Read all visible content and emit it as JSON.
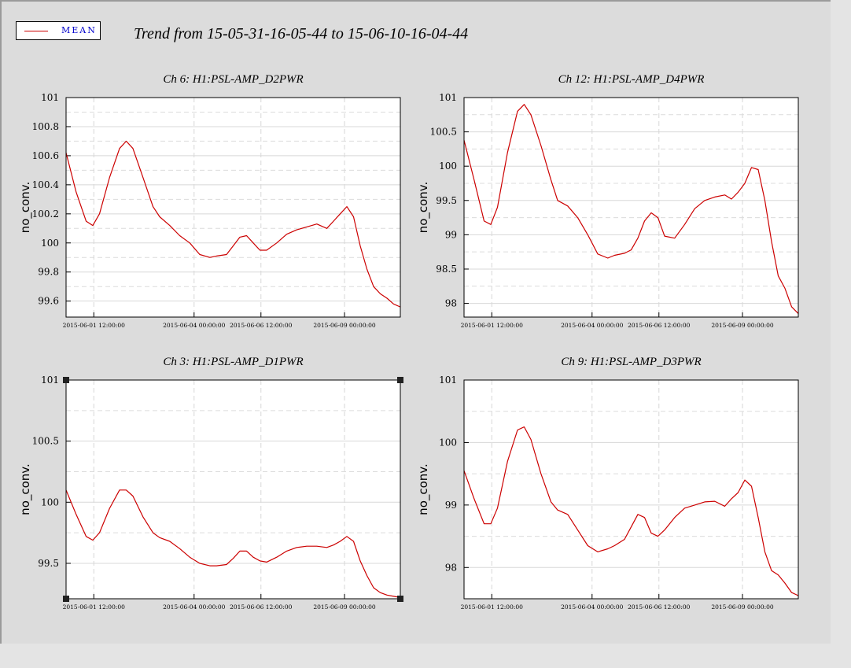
{
  "page": {
    "title": "Trend from 15-05-31-16-05-44 to 15-06-10-16-04-44",
    "legend": {
      "label": "MEAN",
      "color": "#cc0000"
    }
  },
  "chart_data": [
    {
      "type": "line",
      "title": "Ch 6: H1:PSL-AMP_D2PWR",
      "ylabel": "no_conv.",
      "ylim": [
        99.49,
        101
      ],
      "yticks": [
        99.6,
        99.8,
        100,
        100.2,
        100.4,
        100.6,
        100.8,
        101
      ],
      "ytick_labels": [
        "99.6",
        "99.8",
        "100",
        "100.2",
        "100.4",
        "100.6",
        "100.8",
        "101"
      ],
      "xlim": [
        0,
        10
      ],
      "xticks": [
        0.83,
        3.83,
        5.83,
        8.33
      ],
      "xtick_labels": [
        "2015-06-01 12:00:00",
        "2015-06-04 00:00:00",
        "2015-06-06 12:00:00",
        "2015-06-09 00:00:00"
      ],
      "grid": true,
      "series": [
        {
          "name": "MEAN",
          "color": "#cc0000",
          "x": [
            0,
            0.3,
            0.6,
            0.8,
            1.0,
            1.3,
            1.6,
            1.8,
            2.0,
            2.3,
            2.6,
            2.8,
            3.1,
            3.4,
            3.7,
            4.0,
            4.3,
            4.5,
            4.8,
            5.0,
            5.2,
            5.4,
            5.6,
            5.8,
            6.0,
            6.3,
            6.6,
            6.9,
            7.2,
            7.5,
            7.8,
            8.0,
            8.2,
            8.4,
            8.6,
            8.8,
            9.0,
            9.2,
            9.4,
            9.6,
            9.8,
            10.0
          ],
          "y": [
            100.62,
            100.35,
            100.15,
            100.12,
            100.2,
            100.45,
            100.65,
            100.7,
            100.65,
            100.45,
            100.25,
            100.18,
            100.12,
            100.05,
            100.0,
            99.92,
            99.9,
            99.91,
            99.92,
            99.98,
            100.04,
            100.05,
            100.0,
            99.95,
            99.95,
            100.0,
            100.06,
            100.09,
            100.11,
            100.13,
            100.1,
            100.15,
            100.2,
            100.25,
            100.18,
            99.98,
            99.82,
            99.7,
            99.65,
            99.62,
            99.58,
            99.56
          ]
        }
      ]
    },
    {
      "type": "line",
      "title": "Ch 12: H1:PSL-AMP_D4PWR",
      "ylabel": "no_conv.",
      "ylim": [
        97.8,
        101
      ],
      "yticks": [
        98,
        98.5,
        99,
        99.5,
        100,
        100.5,
        101
      ],
      "ytick_labels": [
        "98",
        "98.5",
        "99",
        "99.5",
        "100",
        "100.5",
        "101"
      ],
      "xlim": [
        0,
        10
      ],
      "xticks": [
        0.83,
        3.83,
        5.83,
        8.33
      ],
      "xtick_labels": [
        "2015-06-01 12:00:00",
        "2015-06-04 00:00:00",
        "2015-06-06 12:00:00",
        "2015-06-09 00:00:00"
      ],
      "grid": true,
      "series": [
        {
          "name": "MEAN",
          "color": "#cc0000",
          "x": [
            0,
            0.3,
            0.6,
            0.8,
            1.0,
            1.3,
            1.6,
            1.8,
            2.0,
            2.3,
            2.6,
            2.8,
            3.1,
            3.4,
            3.7,
            4.0,
            4.3,
            4.5,
            4.8,
            5.0,
            5.2,
            5.4,
            5.6,
            5.8,
            6.0,
            6.3,
            6.6,
            6.9,
            7.2,
            7.5,
            7.8,
            8.0,
            8.2,
            8.4,
            8.6,
            8.8,
            9.0,
            9.2,
            9.4,
            9.6,
            9.8,
            10.0
          ],
          "y": [
            100.38,
            99.8,
            99.2,
            99.15,
            99.4,
            100.2,
            100.8,
            100.9,
            100.75,
            100.3,
            99.8,
            99.5,
            99.42,
            99.25,
            99.0,
            98.72,
            98.66,
            98.7,
            98.73,
            98.78,
            98.95,
            99.2,
            99.32,
            99.25,
            98.98,
            98.95,
            99.15,
            99.38,
            99.5,
            99.55,
            99.58,
            99.52,
            99.62,
            99.75,
            99.98,
            99.95,
            99.5,
            98.9,
            98.4,
            98.22,
            97.95,
            97.85
          ]
        }
      ]
    },
    {
      "type": "line",
      "title": "Ch 3: H1:PSL-AMP_D1PWR",
      "ylabel": "no_conv.",
      "ylim": [
        99.21,
        101
      ],
      "yticks": [
        99.5,
        100,
        100.5,
        101
      ],
      "ytick_labels": [
        "99.5",
        "100",
        "100.5",
        "101"
      ],
      "xlim": [
        0,
        10
      ],
      "xticks": [
        0.83,
        3.83,
        5.83,
        8.33
      ],
      "xtick_labels": [
        "2015-06-01 12:00:00",
        "2015-06-04 00:00:00",
        "2015-06-06 12:00:00",
        "2015-06-09 00:00:00"
      ],
      "grid": true,
      "series": [
        {
          "name": "MEAN",
          "color": "#cc0000",
          "x": [
            0,
            0.3,
            0.6,
            0.8,
            1.0,
            1.3,
            1.6,
            1.8,
            2.0,
            2.3,
            2.6,
            2.8,
            3.1,
            3.4,
            3.7,
            4.0,
            4.3,
            4.5,
            4.8,
            5.0,
            5.2,
            5.4,
            5.6,
            5.8,
            6.0,
            6.3,
            6.6,
            6.9,
            7.2,
            7.5,
            7.8,
            8.0,
            8.2,
            8.4,
            8.6,
            8.8,
            9.0,
            9.2,
            9.4,
            9.6,
            9.8,
            10.0
          ],
          "y": [
            100.1,
            99.9,
            99.72,
            99.69,
            99.75,
            99.95,
            100.1,
            100.1,
            100.05,
            99.88,
            99.75,
            99.71,
            99.68,
            99.62,
            99.55,
            99.5,
            99.48,
            99.48,
            99.49,
            99.54,
            99.6,
            99.6,
            99.55,
            99.52,
            99.51,
            99.55,
            99.6,
            99.63,
            99.64,
            99.64,
            99.63,
            99.65,
            99.68,
            99.72,
            99.68,
            99.52,
            99.4,
            99.3,
            99.26,
            99.24,
            99.23,
            99.22
          ]
        }
      ]
    },
    {
      "type": "line",
      "title": "Ch 9: H1:PSL-AMP_D3PWR",
      "ylabel": "no_conv.",
      "ylim": [
        97.5,
        101
      ],
      "yticks": [
        98,
        99,
        100,
        101
      ],
      "ytick_labels": [
        "98",
        "99",
        "100",
        "101"
      ],
      "xlim": [
        0,
        10
      ],
      "xticks": [
        0.83,
        3.83,
        5.83,
        8.33
      ],
      "xtick_labels": [
        "2015-06-01 12:00:00",
        "2015-06-04 00:00:00",
        "2015-06-06 12:00:00",
        "2015-06-09 00:00:00"
      ],
      "grid": true,
      "series": [
        {
          "name": "MEAN",
          "color": "#cc0000",
          "x": [
            0,
            0.3,
            0.6,
            0.8,
            1.0,
            1.3,
            1.6,
            1.8,
            2.0,
            2.3,
            2.6,
            2.8,
            3.1,
            3.4,
            3.7,
            4.0,
            4.3,
            4.5,
            4.8,
            5.0,
            5.2,
            5.4,
            5.6,
            5.8,
            6.0,
            6.3,
            6.6,
            6.9,
            7.2,
            7.5,
            7.8,
            8.0,
            8.2,
            8.4,
            8.6,
            8.8,
            9.0,
            9.2,
            9.4,
            9.6,
            9.8,
            10.0
          ],
          "y": [
            99.55,
            99.1,
            98.7,
            98.7,
            98.95,
            99.7,
            100.2,
            100.25,
            100.05,
            99.5,
            99.05,
            98.92,
            98.85,
            98.6,
            98.35,
            98.25,
            98.3,
            98.35,
            98.45,
            98.65,
            98.85,
            98.8,
            98.55,
            98.5,
            98.6,
            98.8,
            98.95,
            99.0,
            99.05,
            99.06,
            98.98,
            99.1,
            99.2,
            99.4,
            99.3,
            98.8,
            98.25,
            97.95,
            97.88,
            97.75,
            97.6,
            97.55
          ]
        }
      ]
    }
  ]
}
